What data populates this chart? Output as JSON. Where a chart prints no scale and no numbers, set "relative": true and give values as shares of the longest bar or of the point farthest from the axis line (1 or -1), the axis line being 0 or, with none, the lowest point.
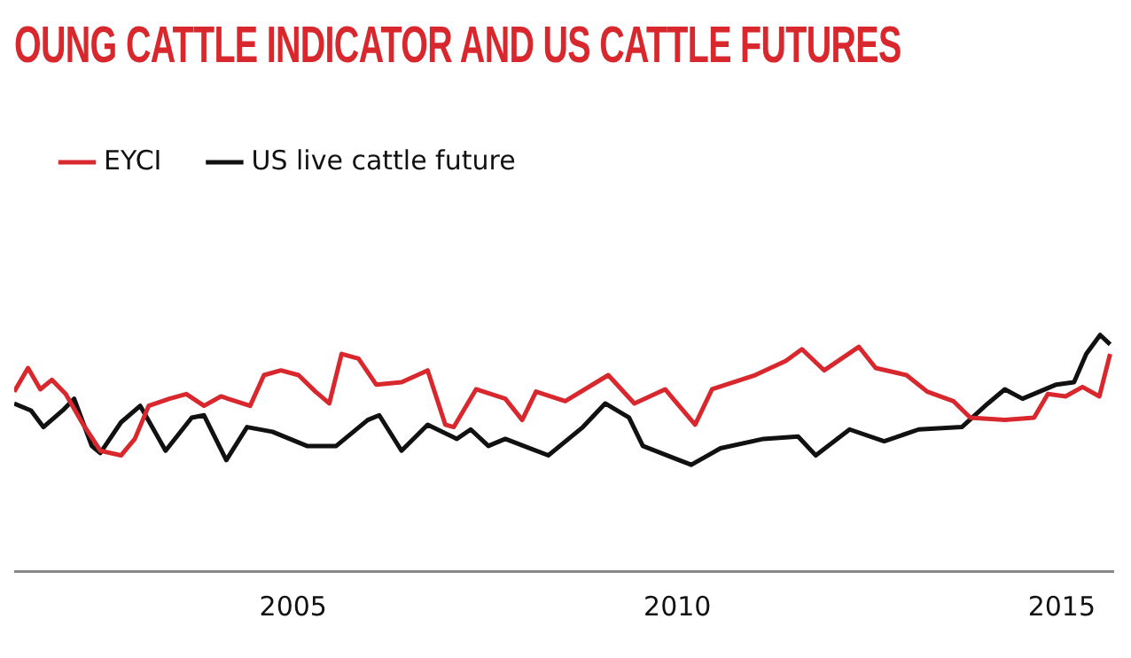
{
  "chart_data": {
    "type": "line",
    "title": "OUNG CATTLE INDICATOR AND US CATTLE FUTURES",
    "relative": true,
    "legend": "top left",
    "grid": false,
    "marker": "none",
    "line_style": "solid",
    "xlim": [
      2001.37,
      2015.67
    ],
    "xticks": [
      2005,
      2010,
      2015
    ],
    "series": [
      {
        "name": "EYCI",
        "color": "#d9272e",
        "x": [
          2001.37,
          2001.55,
          2001.71,
          2001.86,
          2002.04,
          2002.27,
          2002.49,
          2002.76,
          2002.94,
          2003.12,
          2003.39,
          2003.61,
          2003.84,
          2004.06,
          2004.44,
          2004.62,
          2004.84,
          2005.07,
          2005.29,
          2005.47,
          2005.63,
          2005.85,
          2006.08,
          2006.41,
          2006.75,
          2006.98,
          2007.09,
          2007.38,
          2007.76,
          2007.98,
          2008.16,
          2008.54,
          2009.1,
          2009.44,
          2009.84,
          2010.23,
          2010.45,
          2011.01,
          2011.41,
          2011.62,
          2011.91,
          2012.36,
          2012.58,
          2012.98,
          2013.25,
          2013.59,
          2013.81,
          2014.26,
          2014.64,
          2014.82,
          2015.05,
          2015.27,
          2015.49,
          2015.63
        ],
        "values": [
          0.76,
          0.86,
          0.77,
          0.81,
          0.75,
          0.62,
          0.51,
          0.49,
          0.56,
          0.7,
          0.73,
          0.75,
          0.7,
          0.74,
          0.7,
          0.83,
          0.85,
          0.83,
          0.76,
          0.71,
          0.92,
          0.9,
          0.79,
          0.8,
          0.85,
          0.62,
          0.61,
          0.77,
          0.73,
          0.64,
          0.76,
          0.72,
          0.83,
          0.71,
          0.77,
          0.62,
          0.77,
          0.83,
          0.89,
          0.94,
          0.85,
          0.95,
          0.86,
          0.83,
          0.76,
          0.72,
          0.65,
          0.64,
          0.65,
          0.75,
          0.74,
          0.78,
          0.74,
          0.92
        ]
      },
      {
        "name": "US live cattle future",
        "color": "#111111",
        "x": [
          2001.37,
          2001.59,
          2001.75,
          2002.0,
          2002.15,
          2002.38,
          2002.49,
          2002.76,
          2003.01,
          2003.34,
          2003.68,
          2003.84,
          2004.13,
          2004.4,
          2004.73,
          2005.18,
          2005.56,
          2005.97,
          2006.12,
          2006.41,
          2006.75,
          2007.13,
          2007.31,
          2007.54,
          2007.76,
          2008.32,
          2008.77,
          2009.06,
          2009.37,
          2009.55,
          2010.18,
          2010.56,
          2011.12,
          2011.57,
          2011.8,
          2012.24,
          2012.69,
          2013.14,
          2013.7,
          2014.04,
          2014.26,
          2014.49,
          2014.93,
          2015.16,
          2015.32,
          2015.5,
          2015.63
        ],
        "values": [
          0.71,
          0.68,
          0.61,
          0.68,
          0.73,
          0.53,
          0.5,
          0.63,
          0.7,
          0.51,
          0.65,
          0.66,
          0.47,
          0.61,
          0.59,
          0.53,
          0.53,
          0.64,
          0.66,
          0.51,
          0.62,
          0.56,
          0.6,
          0.53,
          0.56,
          0.49,
          0.61,
          0.71,
          0.65,
          0.53,
          0.45,
          0.52,
          0.56,
          0.57,
          0.49,
          0.6,
          0.55,
          0.6,
          0.61,
          0.71,
          0.77,
          0.73,
          0.79,
          0.8,
          0.92,
          1,
          0.96
        ]
      }
    ]
  }
}
